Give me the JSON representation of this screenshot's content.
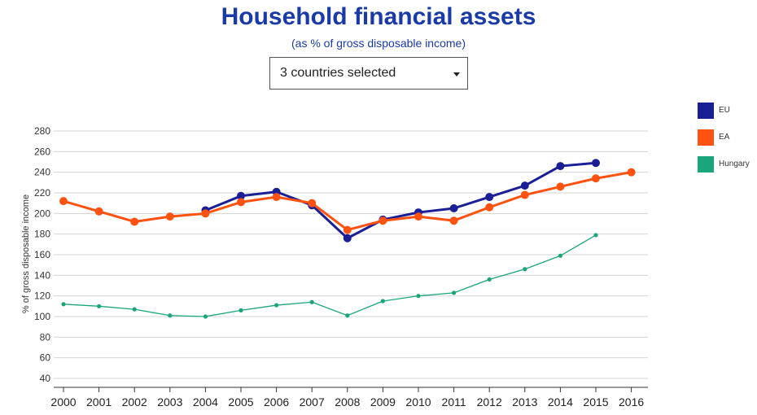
{
  "header": {
    "title": "Household financial assets",
    "subtitle": "(as % of gross disposable income)"
  },
  "selector": {
    "value": "3 countries selected",
    "icon": "caret-down-icon"
  },
  "chart_data": {
    "type": "line",
    "title": "Household financial assets",
    "subtitle": "(as % of gross disposable income)",
    "xlabel": "",
    "ylabel": "% of gross disposable income",
    "x": [
      "2000",
      "2001",
      "2002",
      "2003",
      "2004",
      "2005",
      "2006",
      "2007",
      "2008",
      "2009",
      "2010",
      "2011",
      "2012",
      "2013",
      "2014",
      "2015",
      "2016"
    ],
    "yticks": [
      40,
      60,
      80,
      100,
      120,
      140,
      160,
      180,
      200,
      220,
      240,
      260,
      280
    ],
    "ylim": [
      35,
      285
    ],
    "grid": true,
    "legend_position": "right",
    "series": [
      {
        "name": "EU",
        "color": "#1a1f96",
        "marker": "large",
        "values": [
          null,
          null,
          null,
          null,
          203,
          217,
          221,
          208,
          176,
          194,
          201,
          205,
          216,
          227,
          246,
          249,
          null
        ]
      },
      {
        "name": "EA",
        "color": "#ff5210",
        "marker": "large",
        "values": [
          212,
          202,
          192,
          197,
          200,
          211,
          216,
          210,
          184,
          193,
          197,
          193,
          206,
          218,
          226,
          234,
          240
        ]
      },
      {
        "name": "Hungary",
        "color": "#1aa67a",
        "marker": "small",
        "values": [
          112,
          110,
          107,
          101,
          100,
          106,
          111,
          114,
          101,
          115,
          120,
          123,
          136,
          146,
          159,
          179,
          null
        ]
      }
    ]
  }
}
